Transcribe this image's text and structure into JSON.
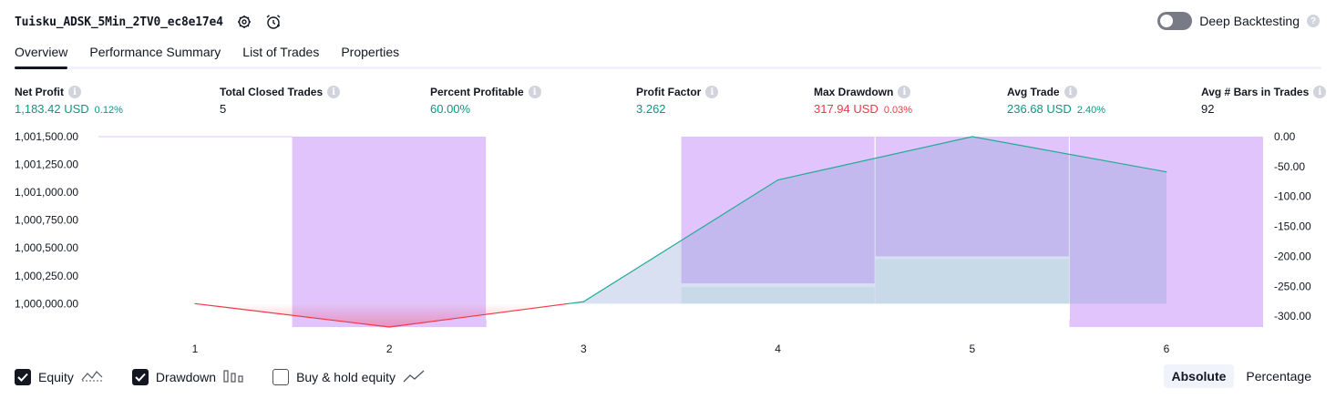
{
  "header": {
    "title": "Tuisku_ADSK_5Min_2TV0_ec8e17e4",
    "settings_icon": "gear-icon",
    "alert_icon": "alarm-clock-icon"
  },
  "deep_backtesting": {
    "label": "Deep Backtesting",
    "enabled": false,
    "help": "?"
  },
  "tabs": [
    {
      "label": "Overview",
      "active": true
    },
    {
      "label": "Performance Summary",
      "active": false
    },
    {
      "label": "List of Trades",
      "active": false
    },
    {
      "label": "Properties",
      "active": false
    }
  ],
  "metrics": {
    "net_profit": {
      "label": "Net Profit",
      "value": "1,183.42 USD",
      "sub": "0.12%"
    },
    "total_closed_trades": {
      "label": "Total Closed Trades",
      "value": "5"
    },
    "percent_profitable": {
      "label": "Percent Profitable",
      "value": "60.00%"
    },
    "profit_factor": {
      "label": "Profit Factor",
      "value": "3.262"
    },
    "max_drawdown": {
      "label": "Max Drawdown",
      "value": "317.94 USD",
      "sub": "0.03%"
    },
    "avg_trade": {
      "label": "Avg Trade",
      "value": "236.68 USD",
      "sub": "2.40%"
    },
    "avg_bars": {
      "label": "Avg # Bars in Trades",
      "value": "92"
    },
    "info": "i"
  },
  "chart_data": {
    "type": "line",
    "x": [
      1,
      2,
      3,
      4,
      5,
      6
    ],
    "x_tick_labels": [
      "1",
      "2",
      "3",
      "4",
      "5",
      "6"
    ],
    "left_axis": {
      "tick_labels": [
        "1,001,500.00",
        "1,001,250.00",
        "1,001,000.00",
        "1,000,750.00",
        "1,000,500.00",
        "1,000,250.00",
        "1,000,000.00"
      ],
      "ticks": [
        1001500,
        1001250,
        1001000,
        1000750,
        1000500,
        1000250,
        1000000
      ],
      "ylim": [
        999790,
        1001500
      ]
    },
    "right_axis": {
      "tick_labels": [
        "0.00",
        "-50.00",
        "-100.00",
        "-150.00",
        "-200.00",
        "-250.00",
        "-300.00"
      ],
      "ticks": [
        0,
        -50,
        -100,
        -150,
        -200,
        -250,
        -300
      ],
      "ylim": [
        -317.94,
        0
      ]
    },
    "series": [
      {
        "values": [
          1000000,
          999790,
          1000018,
          1001111,
          1001500,
          1001183.42
        ],
        "axis": "left",
        "colors": {
          "loss": "#f23645",
          "gain": "#22ab94"
        }
      },
      {
        "values": [
          0,
          -317.94,
          0,
          -245,
          -200,
          -317.94
        ],
        "axis": "right",
        "kind": "drawdown-bars",
        "color": "#e1c4fb"
      },
      {
        "values": [
          1000000,
          1000000,
          1000000,
          1000150,
          1000400,
          1000400
        ],
        "axis": "left",
        "kind": "buy-hold-area",
        "color": "#e6f5f2"
      }
    ]
  },
  "legend": {
    "items": [
      {
        "label": "Equity",
        "checked": true,
        "icon": "equity-line-icon"
      },
      {
        "label": "Drawdown",
        "checked": true,
        "icon": "bars-icon"
      },
      {
        "label": "Buy & hold equity",
        "checked": false,
        "icon": "trend-line-icon"
      }
    ]
  },
  "mode": {
    "options": [
      "Absolute",
      "Percentage"
    ],
    "selected": "Absolute"
  },
  "colors": {
    "green": "#089981",
    "red": "#f23645",
    "drawdown": "#e1c4fb",
    "equity_line": "#22ab94"
  }
}
